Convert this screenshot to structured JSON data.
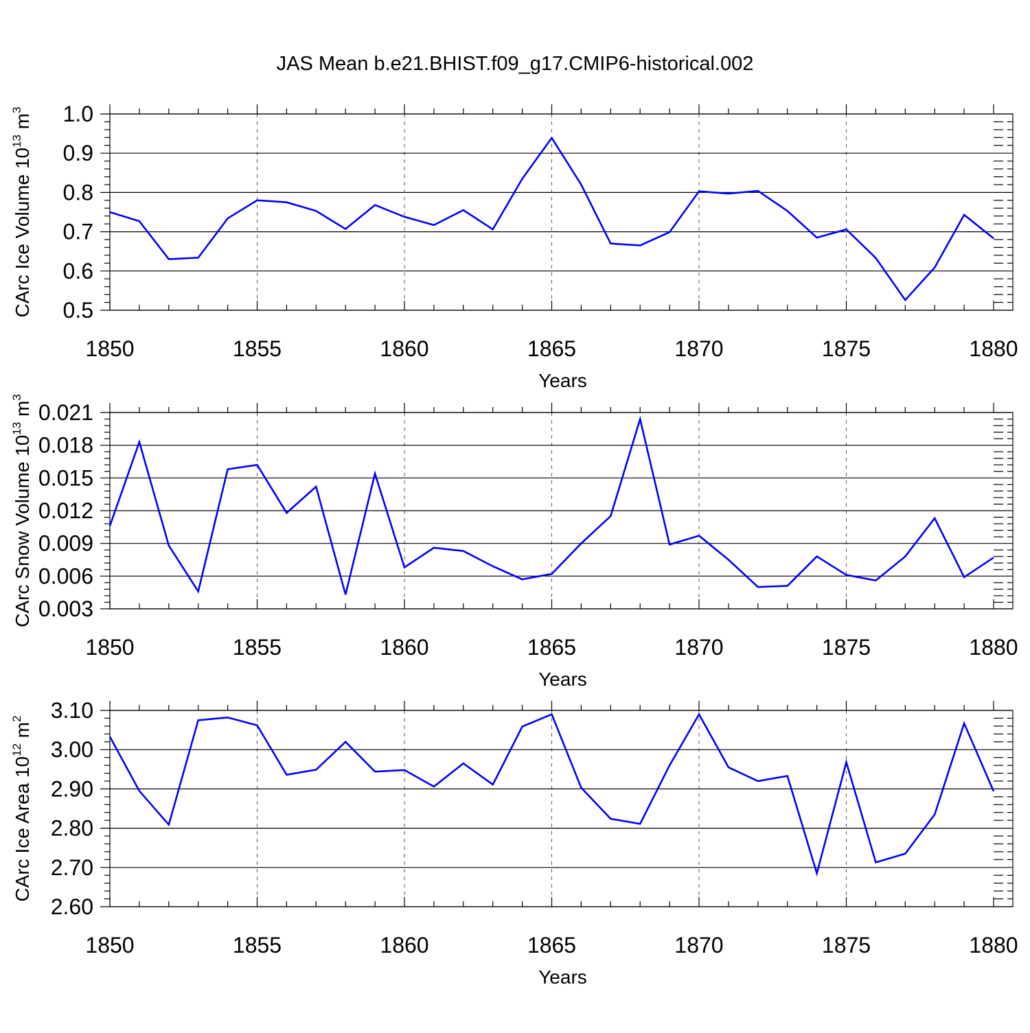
{
  "title": "JAS Mean b.e21.BHIST.f09_g17.CMIP6-historical.002",
  "colors": {
    "series": "#0000ff",
    "axis": "#000000",
    "grid": "#555555"
  },
  "chart_data": [
    {
      "type": "line",
      "xlabel": "Years",
      "ylabel": "CArc Ice Volume 10",
      "ylabel_sup": "13",
      "ylabel_unit": " m",
      "ylabel_unit_sup": "3",
      "xlim": [
        1850,
        1880
      ],
      "ylim": [
        0.5,
        1.0
      ],
      "xticks": [
        "1850",
        "1855",
        "1860",
        "1865",
        "1870",
        "1875",
        "1880"
      ],
      "yticks": [
        "0.5",
        "0.6",
        "0.7",
        "0.8",
        "0.9",
        "1.0"
      ],
      "grid_x": [
        1855,
        1860,
        1865,
        1870,
        1875
      ],
      "series": [
        {
          "name": "Ice Volume",
          "x": [
            1850,
            1851,
            1852,
            1853,
            1854,
            1855,
            1856,
            1857,
            1858,
            1859,
            1860,
            1861,
            1862,
            1863,
            1864,
            1865,
            1866,
            1867,
            1868,
            1869,
            1870,
            1871,
            1872,
            1873,
            1874,
            1875,
            1876,
            1877,
            1878,
            1879,
            1880
          ],
          "values": [
            0.75,
            0.727,
            0.63,
            0.634,
            0.734,
            0.78,
            0.775,
            0.753,
            0.707,
            0.768,
            0.738,
            0.717,
            0.755,
            0.706,
            0.835,
            0.939,
            0.82,
            0.67,
            0.665,
            0.699,
            0.803,
            0.797,
            0.804,
            0.753,
            0.685,
            0.706,
            0.633,
            0.526,
            0.609,
            0.743,
            0.683
          ]
        }
      ]
    },
    {
      "type": "line",
      "xlabel": "Years",
      "ylabel": "CArc Snow Volume 10",
      "ylabel_sup": "13",
      "ylabel_unit": " m",
      "ylabel_unit_sup": "3",
      "xlim": [
        1850,
        1880
      ],
      "ylim": [
        0.003,
        0.021
      ],
      "xticks": [
        "1850",
        "1855",
        "1860",
        "1865",
        "1870",
        "1875",
        "1880"
      ],
      "yticks": [
        "0.003",
        "0.006",
        "0.009",
        "0.012",
        "0.015",
        "0.018",
        "0.021"
      ],
      "grid_x": [
        1855,
        1860,
        1865,
        1870,
        1875
      ],
      "series": [
        {
          "name": "Snow Volume",
          "x": [
            1850,
            1851,
            1852,
            1853,
            1854,
            1855,
            1856,
            1857,
            1858,
            1859,
            1860,
            1861,
            1862,
            1863,
            1864,
            1865,
            1866,
            1867,
            1868,
            1869,
            1870,
            1871,
            1872,
            1873,
            1874,
            1875,
            1876,
            1877,
            1878,
            1879,
            1880
          ],
          "values": [
            0.0106,
            0.0183,
            0.0088,
            0.0046,
            0.0158,
            0.0162,
            0.0118,
            0.0142,
            0.0043,
            0.0154,
            0.0068,
            0.0086,
            0.0083,
            0.0069,
            0.0057,
            0.0062,
            0.009,
            0.0115,
            0.0204,
            0.0089,
            0.0097,
            0.0075,
            0.005,
            0.0051,
            0.0078,
            0.0061,
            0.0056,
            0.0078,
            0.0113,
            0.0059,
            0.0077
          ]
        }
      ]
    },
    {
      "type": "line",
      "xlabel": "Years",
      "ylabel": "CArc Ice Area 10",
      "ylabel_sup": "12",
      "ylabel_unit": " m",
      "ylabel_unit_sup": "2",
      "xlim": [
        1850,
        1880
      ],
      "ylim": [
        2.6,
        3.1
      ],
      "xticks": [
        "1850",
        "1855",
        "1860",
        "1865",
        "1870",
        "1875",
        "1880"
      ],
      "yticks": [
        "2.60",
        "2.70",
        "2.80",
        "2.90",
        "3.00",
        "3.10"
      ],
      "grid_x": [
        1855,
        1860,
        1865,
        1870,
        1875
      ],
      "series": [
        {
          "name": "Ice Area",
          "x": [
            1850,
            1851,
            1852,
            1853,
            1854,
            1855,
            1856,
            1857,
            1858,
            1859,
            1860,
            1861,
            1862,
            1863,
            1864,
            1865,
            1866,
            1867,
            1868,
            1869,
            1870,
            1871,
            1872,
            1873,
            1874,
            1875,
            1876,
            1877,
            1878,
            1879,
            1880
          ],
          "values": [
            3.033,
            2.895,
            2.809,
            3.075,
            3.082,
            3.062,
            2.936,
            2.949,
            3.02,
            2.944,
            2.948,
            2.906,
            2.965,
            2.911,
            3.059,
            3.09,
            2.903,
            2.824,
            2.811,
            2.96,
            3.09,
            2.955,
            2.92,
            2.933,
            2.685,
            2.968,
            2.713,
            2.735,
            2.835,
            3.067,
            2.894
          ]
        }
      ]
    }
  ]
}
